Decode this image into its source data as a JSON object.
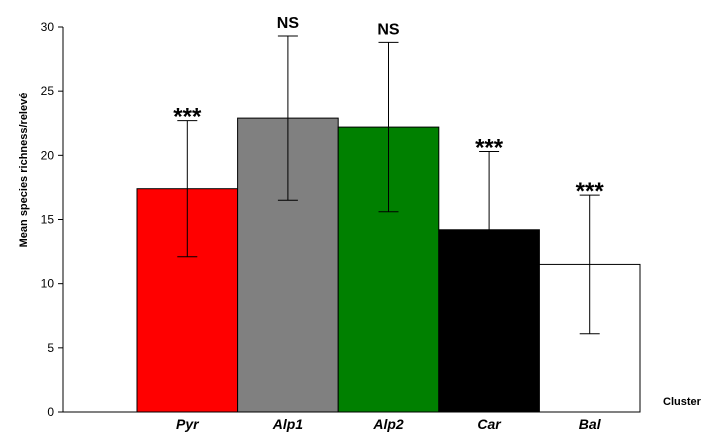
{
  "chart_data": {
    "type": "bar",
    "categories": [
      "Pyr",
      "Alp1",
      "Alp2",
      "Car",
      "Bal"
    ],
    "values": [
      17.4,
      22.9,
      22.2,
      14.2,
      11.5
    ],
    "error_upper": [
      22.7,
      29.3,
      28.8,
      20.3,
      16.9
    ],
    "error_lower": [
      12.1,
      16.5,
      15.6,
      8.1,
      6.1
    ],
    "significance": [
      "***",
      "NS",
      "NS",
      "***",
      "***"
    ],
    "bar_colors": [
      "#ff0000",
      "#808080",
      "#008000",
      "#000000",
      "#ffffff"
    ],
    "title": "",
    "xlabel": "Cluster",
    "ylabel": "Mean species richness/relevé",
    "ylim": [
      0,
      30
    ],
    "yticks": [
      0,
      5,
      10,
      15,
      20,
      25,
      30
    ],
    "grid": false,
    "legend": "none"
  }
}
